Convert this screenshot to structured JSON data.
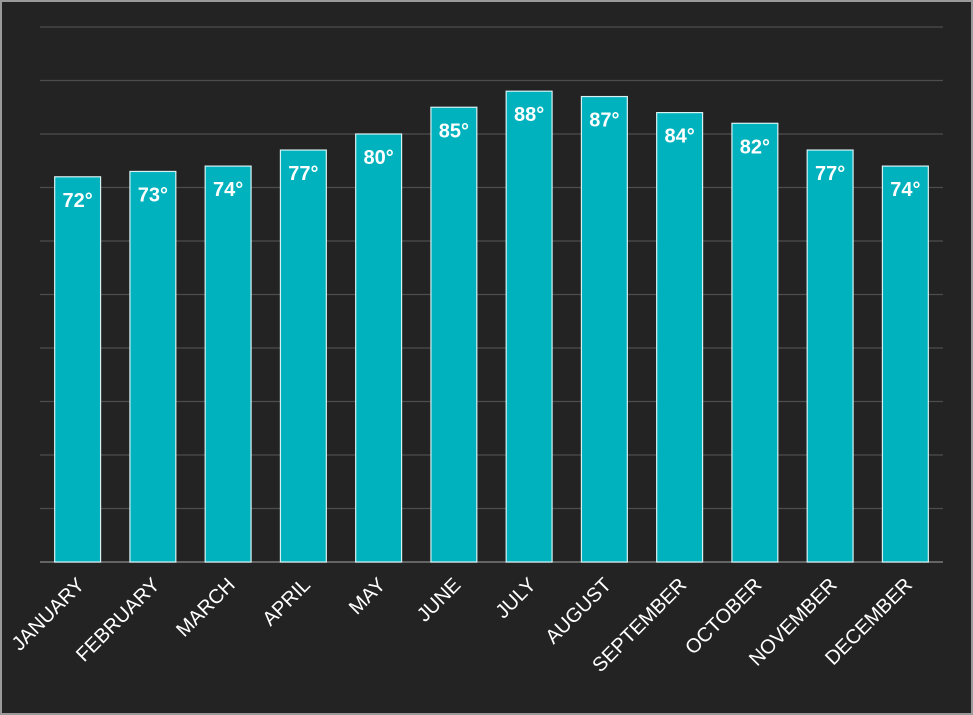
{
  "chart_data": {
    "type": "bar",
    "title": "",
    "xlabel": "",
    "ylabel": "",
    "categories": [
      "JANUARY",
      "FEBRUARY",
      "MARCH",
      "APRIL",
      "MAY",
      "JUNE",
      "JULY",
      "AUGUST",
      "SEPTEMBER",
      "OCTOBER",
      "NOVEMBER",
      "DECEMBER"
    ],
    "values": [
      72,
      73,
      74,
      77,
      80,
      85,
      88,
      87,
      84,
      82,
      77,
      74
    ],
    "value_labels": [
      "72°",
      "73°",
      "74°",
      "77°",
      "80°",
      "85°",
      "88°",
      "87°",
      "84°",
      "82°",
      "77°",
      "74°"
    ],
    "ylim": [
      0,
      100
    ],
    "y_tick_step": 10,
    "grid": true,
    "legend": "none",
    "colors": {
      "bar": "#00b2bd",
      "background": "#232323",
      "text": "#ffffff"
    }
  }
}
